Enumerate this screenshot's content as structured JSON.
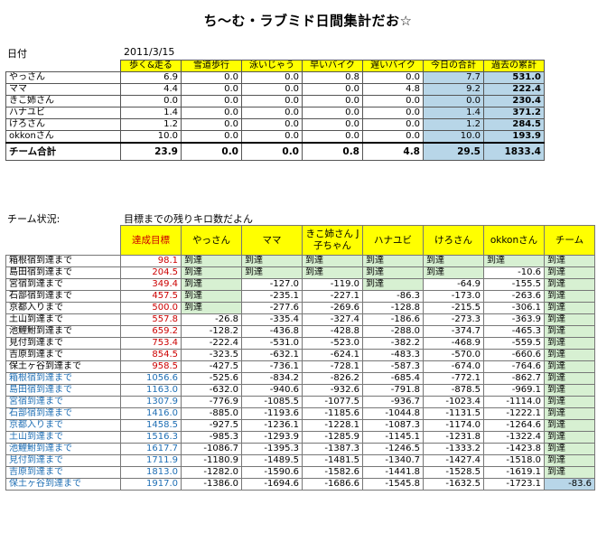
{
  "title": "ち～む・ラブミド日間集計だお☆",
  "date_label": "日付",
  "date_value": "2011/3/15",
  "summary": {
    "headers": [
      "歩く&走る",
      "雪道歩行",
      "泳いじゃう",
      "早いバイク",
      "遅いバイク",
      "今日の合計",
      "過去の累計"
    ],
    "rows": [
      {
        "name": "やっさん",
        "values": [
          "6.9",
          "0.0",
          "0.0",
          "0.8",
          "0.0",
          "7.7",
          "531.0"
        ]
      },
      {
        "name": "ママ",
        "values": [
          "4.4",
          "0.0",
          "0.0",
          "0.0",
          "4.8",
          "9.2",
          "222.4"
        ]
      },
      {
        "name": "きこ姉さん",
        "values": [
          "0.0",
          "0.0",
          "0.0",
          "0.0",
          "0.0",
          "0.0",
          "230.4"
        ]
      },
      {
        "name": "ハナユビ",
        "values": [
          "1.4",
          "0.0",
          "0.0",
          "0.0",
          "0.0",
          "1.4",
          "371.2"
        ]
      },
      {
        "name": "けろさん",
        "values": [
          "1.2",
          "0.0",
          "0.0",
          "0.0",
          "0.0",
          "1.2",
          "284.5"
        ]
      },
      {
        "name": "okkonさん",
        "values": [
          "10.0",
          "0.0",
          "0.0",
          "0.0",
          "0.0",
          "10.0",
          "193.9"
        ]
      }
    ],
    "total": {
      "name": "チーム合計",
      "values": [
        "23.9",
        "0.0",
        "0.0",
        "0.8",
        "4.8",
        "29.5",
        "1833.4"
      ]
    }
  },
  "status_label": "チーム状況:",
  "status_note": "目標までの残りキロ数だよん",
  "progress": {
    "headers": [
      "達成目標",
      "やっさん",
      "ママ",
      "きこ姉さん J子ちゃん",
      "ハナユビ",
      "けろさん",
      "okkonさん",
      "チーム"
    ],
    "reached_label": "到達",
    "rows": [
      {
        "name": "箱根宿到達まで",
        "goal": "98.1",
        "cells": [
          "到達",
          "到達",
          "到達",
          "到達",
          "到達",
          "到達",
          "到達"
        ]
      },
      {
        "name": "島田宿到達まで",
        "goal": "204.5",
        "cells": [
          "到達",
          "到達",
          "到達",
          "到達",
          "到達",
          "-10.6",
          "到達"
        ]
      },
      {
        "name": "宮宿到達まで",
        "goal": "349.4",
        "cells": [
          "到達",
          "-127.0",
          "-119.0",
          "到達",
          "-64.9",
          "-155.5",
          "到達"
        ]
      },
      {
        "name": "石部宿到達まで",
        "goal": "457.5",
        "cells": [
          "到達",
          "-235.1",
          "-227.1",
          "-86.3",
          "-173.0",
          "-263.6",
          "到達"
        ]
      },
      {
        "name": "京都入りまで",
        "goal": "500.0",
        "cells": [
          "到達",
          "-277.6",
          "-269.6",
          "-128.8",
          "-215.5",
          "-306.1",
          "到達"
        ]
      },
      {
        "name": "土山到達まで",
        "goal": "557.8",
        "cells": [
          "-26.8",
          "-335.4",
          "-327.4",
          "-186.6",
          "-273.3",
          "-363.9",
          "到達"
        ]
      },
      {
        "name": "池鯉鮒到達まで",
        "goal": "659.2",
        "cells": [
          "-128.2",
          "-436.8",
          "-428.8",
          "-288.0",
          "-374.7",
          "-465.3",
          "到達"
        ]
      },
      {
        "name": "見付到達まで",
        "goal": "753.4",
        "cells": [
          "-222.4",
          "-531.0",
          "-523.0",
          "-382.2",
          "-468.9",
          "-559.5",
          "到達"
        ]
      },
      {
        "name": "吉原到達まで",
        "goal": "854.5",
        "cells": [
          "-323.5",
          "-632.1",
          "-624.1",
          "-483.3",
          "-570.0",
          "-660.6",
          "到達"
        ]
      },
      {
        "name": "保土ヶ谷到達まで",
        "goal": "958.5",
        "cells": [
          "-427.5",
          "-736.1",
          "-728.1",
          "-587.3",
          "-674.0",
          "-764.6",
          "到達"
        ]
      },
      {
        "name": "箱根宿到達まで",
        "goal": "1056.6",
        "cells": [
          "-525.6",
          "-834.2",
          "-826.2",
          "-685.4",
          "-772.1",
          "-862.7",
          "到達"
        ]
      },
      {
        "name": "島田宿到達まで",
        "goal": "1163.0",
        "cells": [
          "-632.0",
          "-940.6",
          "-932.6",
          "-791.8",
          "-878.5",
          "-969.1",
          "到達"
        ]
      },
      {
        "name": "宮宿到達まで",
        "goal": "1307.9",
        "cells": [
          "-776.9",
          "-1085.5",
          "-1077.5",
          "-936.7",
          "-1023.4",
          "-1114.0",
          "到達"
        ]
      },
      {
        "name": "石部宿到達まで",
        "goal": "1416.0",
        "cells": [
          "-885.0",
          "-1193.6",
          "-1185.6",
          "-1044.8",
          "-1131.5",
          "-1222.1",
          "到達"
        ]
      },
      {
        "name": "京都入りまで",
        "goal": "1458.5",
        "cells": [
          "-927.5",
          "-1236.1",
          "-1228.1",
          "-1087.3",
          "-1174.0",
          "-1264.6",
          "到達"
        ]
      },
      {
        "name": "土山到達まで",
        "goal": "1516.3",
        "cells": [
          "-985.3",
          "-1293.9",
          "-1285.9",
          "-1145.1",
          "-1231.8",
          "-1322.4",
          "到達"
        ]
      },
      {
        "name": "池鯉鮒到達まで",
        "goal": "1617.7",
        "cells": [
          "-1086.7",
          "-1395.3",
          "-1387.3",
          "-1246.5",
          "-1333.2",
          "-1423.8",
          "到達"
        ]
      },
      {
        "name": "見付到達まで",
        "goal": "1711.9",
        "cells": [
          "-1180.9",
          "-1489.5",
          "-1481.5",
          "-1340.7",
          "-1427.4",
          "-1518.0",
          "到達"
        ]
      },
      {
        "name": "吉原到達まで",
        "goal": "1813.0",
        "cells": [
          "-1282.0",
          "-1590.6",
          "-1582.6",
          "-1441.8",
          "-1528.5",
          "-1619.1",
          "到達"
        ]
      },
      {
        "name": "保土ヶ谷到達まで",
        "goal": "1917.0",
        "cells": [
          "-1386.0",
          "-1694.6",
          "-1686.6",
          "-1545.8",
          "-1632.5",
          "-1723.1",
          "-83.6"
        ]
      }
    ]
  },
  "colors": {
    "header_yellow": "#ffff00",
    "sum_blue": "#b8d6e8",
    "reached_green": "#d7f0d2",
    "goal_red": "#cc0000",
    "second_lap_blue": "#1e6eb4"
  }
}
